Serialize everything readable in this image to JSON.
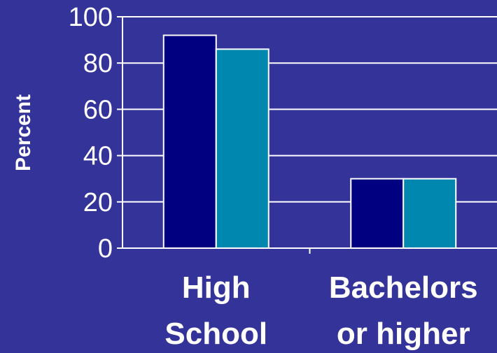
{
  "chart_data": {
    "type": "bar",
    "categories": [
      "High School",
      "Bachelors or higher"
    ],
    "category_lines": [
      [
        "High",
        "School"
      ],
      [
        "Bachelors",
        "or higher"
      ]
    ],
    "series": [
      {
        "values": [
          92,
          30
        ],
        "color": "#000080"
      },
      {
        "values": [
          86,
          30
        ],
        "color": "#0087AF"
      }
    ],
    "ylabel": "Percent",
    "xlabel": "",
    "ylim": [
      0,
      100
    ],
    "yticks": [
      0,
      20,
      40,
      60,
      80,
      100
    ],
    "grid": true,
    "background": "#343399",
    "grid_color": "#FFFFFF"
  }
}
